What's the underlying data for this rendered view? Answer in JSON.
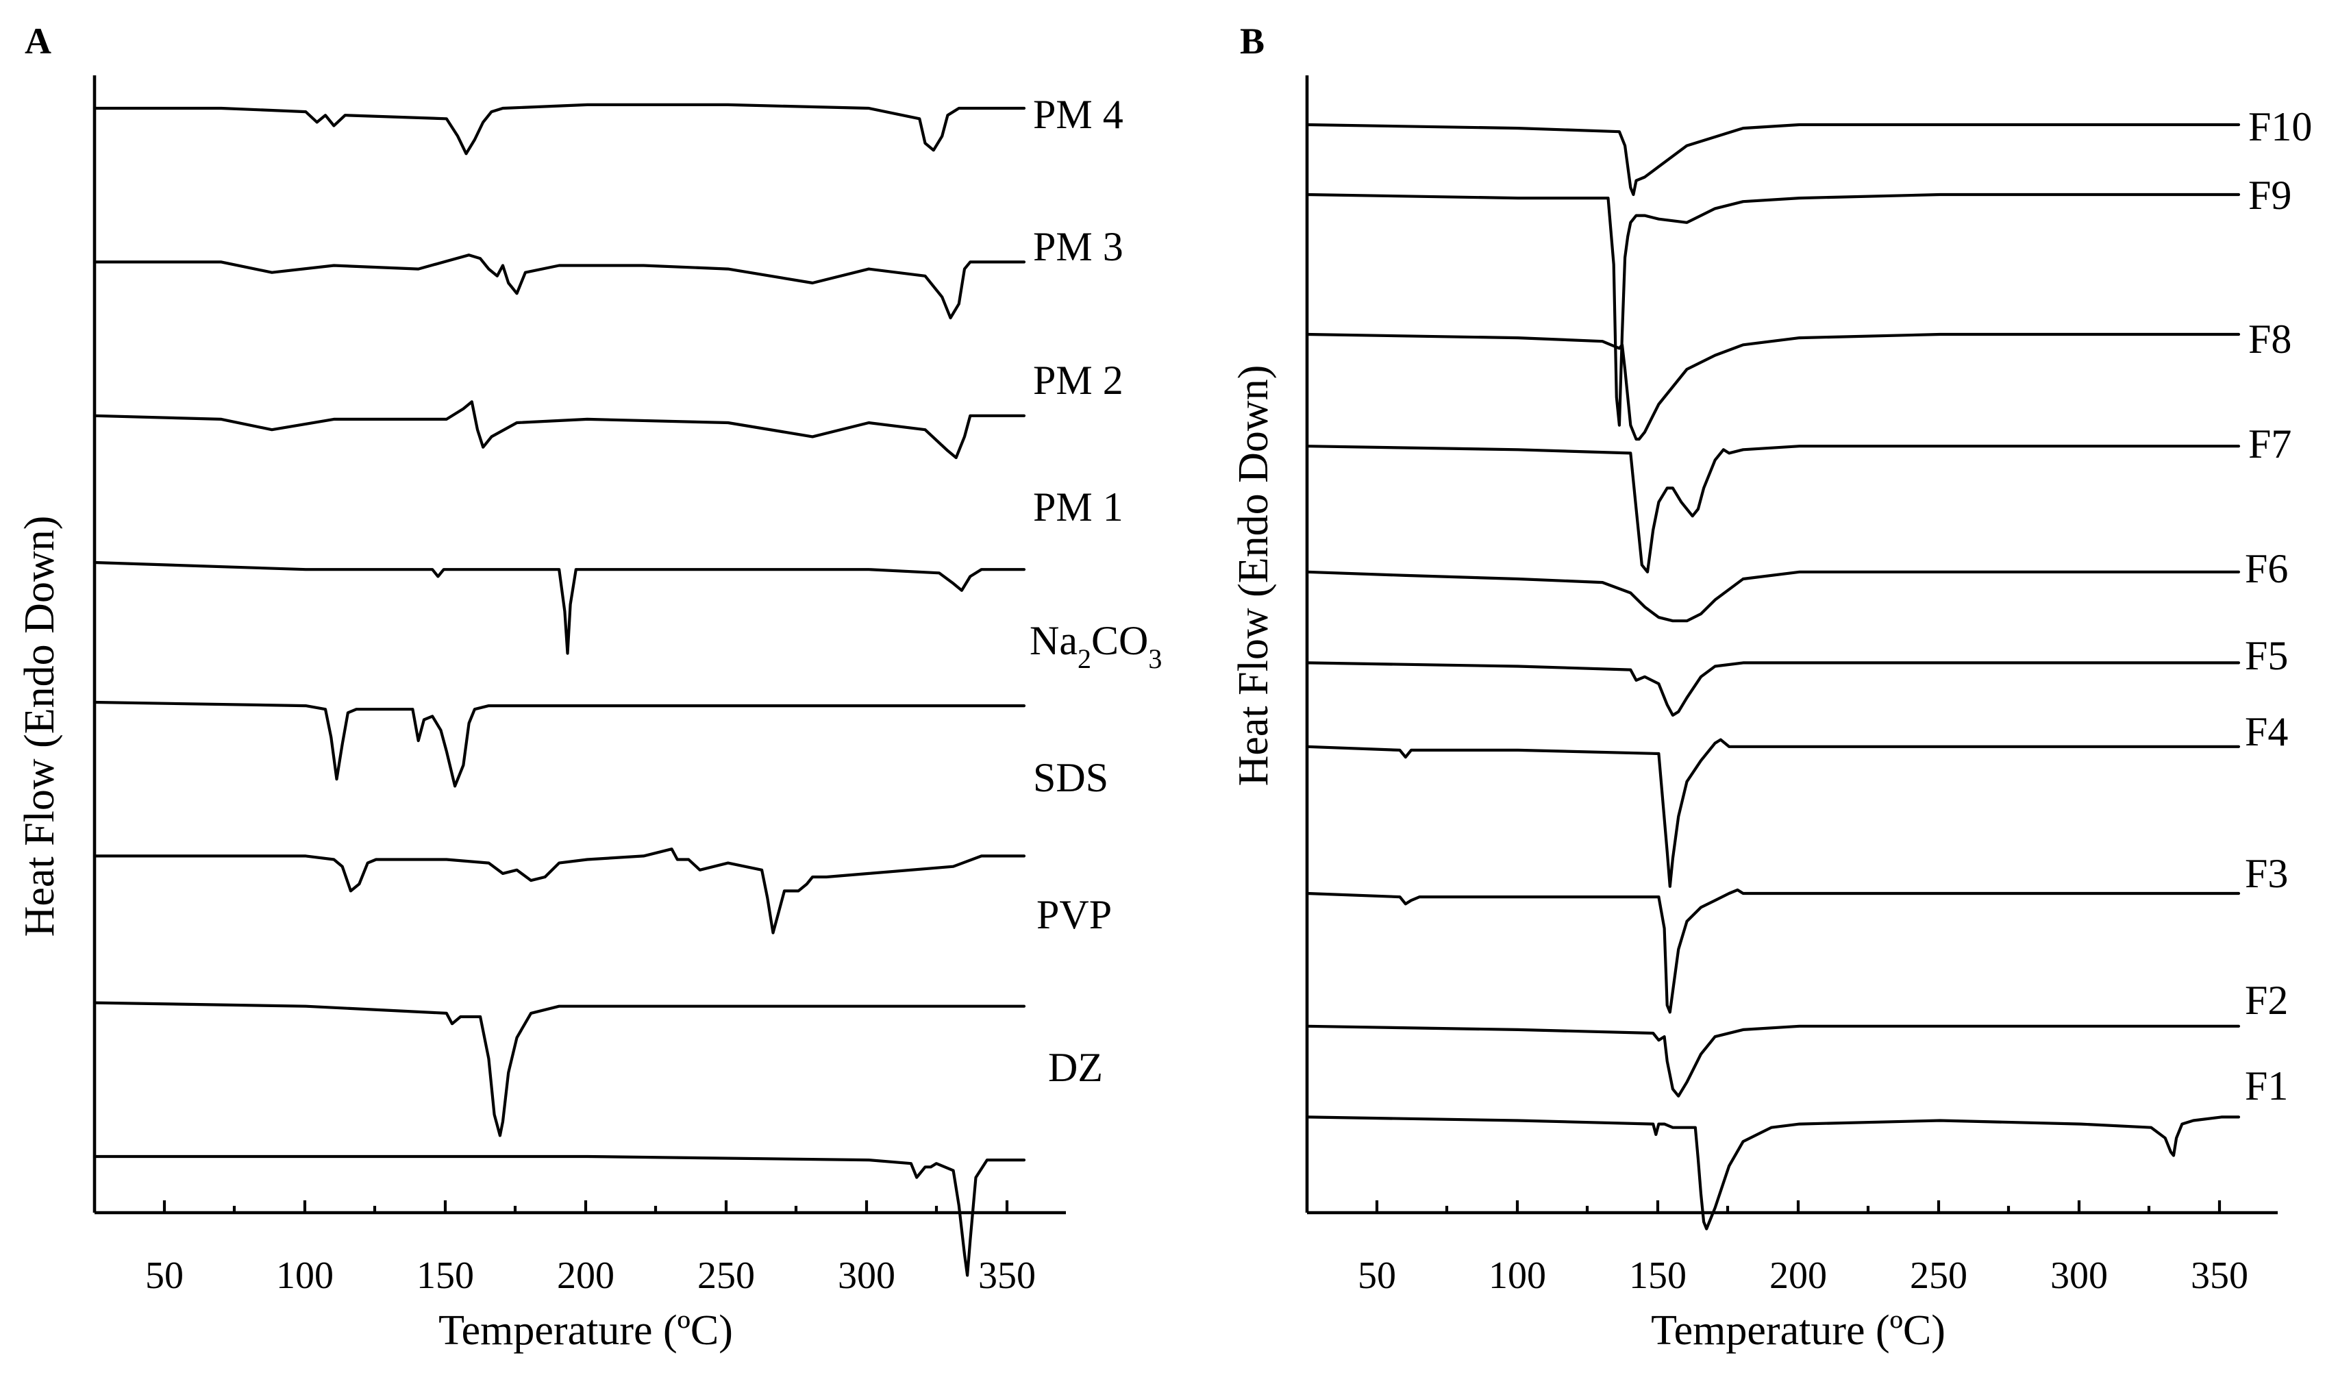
{
  "chart_data": [
    {
      "panel": "A",
      "type": "line",
      "title": "",
      "xlabel": "Temperature (ºC)",
      "ylabel": "Heat Flow (Endo Down)",
      "xlim": [
        25,
        370
      ],
      "xticks": [
        50,
        100,
        150,
        200,
        250,
        300,
        350
      ],
      "xtick_labels": [
        "50",
        "100",
        "150",
        "200",
        "250",
        "300",
        "350"
      ],
      "y_units": "arbitrary (vertically offset traces)",
      "series": [
        {
          "name": "PM 4",
          "base": 0.0,
          "x": [
            25,
            70,
            100,
            104,
            107,
            110,
            114,
            150,
            154,
            157,
            160,
            163,
            166,
            170,
            200,
            250,
            300,
            318,
            320,
            323,
            326,
            328,
            332,
            350
          ],
          "y": [
            0,
            0,
            0.05,
            0.2,
            0.1,
            0.25,
            0.1,
            0.15,
            0.4,
            0.65,
            0.45,
            0.2,
            0.05,
            0,
            -0.05,
            -0.05,
            0,
            0.15,
            0.5,
            0.6,
            0.4,
            0.1,
            0,
            0
          ]
        },
        {
          "name": "PM 3",
          "base": 2.2,
          "x": [
            25,
            70,
            88,
            110,
            140,
            158,
            162,
            165,
            168,
            170,
            172,
            175,
            178,
            190,
            220,
            250,
            280,
            300,
            320,
            326,
            329,
            332,
            334,
            336,
            340,
            350
          ],
          "y": [
            0,
            0,
            0.15,
            0.05,
            0.1,
            -0.1,
            -0.05,
            0.1,
            0.2,
            0.05,
            0.3,
            0.45,
            0.15,
            0.05,
            0.05,
            0.1,
            0.3,
            0.1,
            0.2,
            0.5,
            0.8,
            0.6,
            0.1,
            0,
            0,
            0
          ]
        },
        {
          "name": "PM 2",
          "base": 4.4,
          "x": [
            25,
            70,
            88,
            110,
            150,
            156,
            159,
            161,
            163,
            166,
            175,
            200,
            250,
            280,
            300,
            320,
            328,
            331,
            334,
            336,
            340,
            350
          ],
          "y": [
            0,
            0.05,
            0.2,
            0.05,
            0.05,
            -0.1,
            -0.2,
            0.2,
            0.45,
            0.3,
            0.1,
            0.05,
            0.1,
            0.3,
            0.1,
            0.2,
            0.5,
            0.6,
            0.3,
            0,
            0,
            0
          ]
        },
        {
          "name": "PM 1",
          "base": 6.5,
          "x": [
            25,
            100,
            145,
            147,
            149,
            152,
            190,
            192,
            193,
            194,
            196,
            200,
            250,
            300,
            325,
            330,
            333,
            336,
            340,
            350
          ],
          "y": [
            0,
            0.1,
            0.1,
            0.2,
            0.1,
            0.1,
            0.1,
            0.7,
            1.3,
            0.6,
            0.1,
            0.1,
            0.1,
            0.1,
            0.15,
            0.3,
            0.4,
            0.2,
            0.1,
            0.1
          ]
        },
        {
          "name": "Na₂CO₃",
          "base": 8.5,
          "x": [
            25,
            100,
            107,
            109,
            111,
            113,
            115,
            118,
            130,
            138,
            140,
            142,
            145,
            148,
            150,
            153,
            156,
            158,
            160,
            165,
            200,
            250,
            300,
            350
          ],
          "y": [
            0,
            0.05,
            0.1,
            0.5,
            1.1,
            0.6,
            0.15,
            0.1,
            0.1,
            0.1,
            0.55,
            0.25,
            0.2,
            0.4,
            0.7,
            1.2,
            0.9,
            0.3,
            0.1,
            0.05,
            0.05,
            0.05,
            0.05,
            0.05
          ]
        },
        {
          "name": "SDS",
          "base": 10.7,
          "x": [
            25,
            100,
            110,
            113,
            116,
            119,
            122,
            125,
            150,
            165,
            170,
            175,
            180,
            185,
            190,
            200,
            220,
            230,
            232,
            236,
            240,
            250,
            262,
            264,
            266,
            268,
            270,
            275,
            278,
            280,
            285,
            300,
            330,
            340,
            350
          ],
          "y": [
            0,
            0,
            0.05,
            0.15,
            0.5,
            0.4,
            0.1,
            0.05,
            0.05,
            0.1,
            0.25,
            0.2,
            0.35,
            0.3,
            0.1,
            0.05,
            0,
            -0.1,
            0.05,
            0.05,
            0.2,
            0.1,
            0.2,
            0.6,
            1.1,
            0.8,
            0.5,
            0.5,
            0.4,
            0.3,
            0.3,
            0.25,
            0.15,
            0,
            0
          ]
        },
        {
          "name": "PVP",
          "base": 12.8,
          "x": [
            25,
            100,
            150,
            152,
            155,
            162,
            165,
            167,
            169,
            170,
            172,
            175,
            180,
            190,
            200,
            250,
            300,
            350
          ],
          "y": [
            0,
            0.05,
            0.15,
            0.3,
            0.2,
            0.2,
            0.8,
            1.6,
            1.9,
            1.7,
            1.0,
            0.5,
            0.15,
            0.05,
            0.05,
            0.05,
            0.05,
            0.05
          ]
        },
        {
          "name": "DZ",
          "base": 15.0,
          "x": [
            25,
            100,
            200,
            300,
            315,
            317,
            319,
            320,
            322,
            324,
            330,
            332,
            334,
            335,
            336,
            338,
            342,
            350
          ],
          "y": [
            0,
            0,
            0,
            0.05,
            0.1,
            0.3,
            0.2,
            0.15,
            0.15,
            0.1,
            0.2,
            0.7,
            1.4,
            1.7,
            1.2,
            0.3,
            0.05,
            0.05
          ]
        }
      ],
      "curve_labels": [
        "PM 4",
        "PM 3",
        "PM 2",
        "PM 1",
        "Na",
        "2",
        "CO",
        "3",
        "SDS",
        "PVP",
        "DZ"
      ]
    },
    {
      "panel": "B",
      "type": "line",
      "title": "",
      "xlabel": "Temperature (ºC)",
      "ylabel": "Heat Flow (Endo Down)",
      "xlim": [
        25,
        370
      ],
      "xticks": [
        50,
        100,
        150,
        200,
        250,
        300,
        350
      ],
      "xtick_labels": [
        "50",
        "100",
        "150",
        "200",
        "250",
        "300",
        "350"
      ],
      "y_units": "arbitrary (vertically offset traces)",
      "series": [
        {
          "name": "F10",
          "base": 0.0,
          "x": [
            25,
            100,
            136,
            138,
            140,
            141,
            142,
            145,
            150,
            160,
            180,
            200,
            250,
            300,
            350
          ],
          "y": [
            0,
            0.05,
            0.1,
            0.3,
            0.9,
            1.0,
            0.8,
            0.75,
            0.6,
            0.3,
            0.05,
            0,
            0,
            0,
            0
          ]
        },
        {
          "name": "F9",
          "base": 1.0,
          "x": [
            25,
            100,
            132,
            134,
            135,
            136,
            137,
            138,
            139,
            140,
            142,
            145,
            150,
            160,
            165,
            170,
            180,
            200,
            250,
            300,
            350
          ],
          "y": [
            0,
            0.05,
            0.05,
            1.0,
            2.9,
            3.3,
            2.0,
            0.9,
            0.6,
            0.4,
            0.3,
            0.3,
            0.35,
            0.4,
            0.3,
            0.2,
            0.1,
            0.05,
            0,
            0,
            0
          ]
        },
        {
          "name": "F8",
          "base": 3.0,
          "x": [
            25,
            100,
            130,
            136,
            137,
            138,
            140,
            141,
            142,
            143,
            145,
            150,
            160,
            170,
            180,
            200,
            250,
            300,
            350
          ],
          "y": [
            0,
            0.05,
            0.1,
            0.2,
            0.15,
            0.5,
            1.3,
            1.4,
            1.5,
            1.5,
            1.4,
            1.0,
            0.5,
            0.3,
            0.15,
            0.05,
            0,
            0,
            0
          ]
        },
        {
          "name": "F7",
          "base": 4.6,
          "x": [
            25,
            100,
            140,
            142,
            144,
            146,
            148,
            150,
            153,
            155,
            158,
            162,
            164,
            166,
            170,
            173,
            175,
            180,
            200,
            250,
            300,
            350
          ],
          "y": [
            0,
            0.05,
            0.1,
            0.9,
            1.7,
            1.8,
            1.2,
            0.8,
            0.6,
            0.6,
            0.8,
            1.0,
            0.9,
            0.6,
            0.2,
            0.05,
            0.1,
            0.05,
            0,
            0,
            0,
            0
          ]
        },
        {
          "name": "F6",
          "base": 6.4,
          "x": [
            25,
            60,
            100,
            130,
            140,
            145,
            150,
            155,
            160,
            165,
            170,
            180,
            200,
            250,
            300,
            350
          ],
          "y": [
            0,
            0.05,
            0.1,
            0.15,
            0.3,
            0.5,
            0.65,
            0.7,
            0.7,
            0.6,
            0.4,
            0.1,
            0,
            0,
            0,
            0
          ]
        },
        {
          "name": "F5",
          "base": 7.7,
          "x": [
            25,
            100,
            140,
            142,
            145,
            150,
            153,
            155,
            157,
            160,
            165,
            170,
            180,
            200,
            250,
            300,
            350
          ],
          "y": [
            0,
            0.05,
            0.1,
            0.25,
            0.2,
            0.3,
            0.6,
            0.75,
            0.7,
            0.5,
            0.2,
            0.05,
            0,
            0,
            0,
            0,
            0
          ]
        },
        {
          "name": "F4",
          "base": 8.9,
          "x": [
            25,
            58,
            60,
            62,
            65,
            100,
            150,
            153,
            154,
            155,
            157,
            160,
            165,
            170,
            172,
            175,
            180,
            200,
            250,
            300,
            350
          ],
          "y": [
            0,
            0.05,
            0.15,
            0.05,
            0.05,
            0.05,
            0.1,
            1.5,
            2.0,
            1.6,
            1.0,
            0.5,
            0.2,
            -0.05,
            -0.1,
            0,
            0,
            0,
            0,
            0,
            0
          ]
        },
        {
          "name": "F3",
          "base": 11.0,
          "x": [
            25,
            58,
            60,
            62,
            65,
            100,
            150,
            152,
            153,
            154,
            155,
            157,
            160,
            165,
            170,
            175,
            178,
            180,
            200,
            250,
            300,
            350
          ],
          "y": [
            0,
            0.05,
            0.15,
            0.1,
            0.05,
            0.05,
            0.05,
            0.5,
            1.6,
            1.7,
            1.4,
            0.8,
            0.4,
            0.2,
            0.1,
            0,
            -0.05,
            0,
            0,
            0,
            0,
            0
          ]
        },
        {
          "name": "F2",
          "base": 12.9,
          "x": [
            25,
            100,
            148,
            150,
            152,
            153,
            155,
            157,
            160,
            165,
            170,
            180,
            200,
            250,
            300,
            350
          ],
          "y": [
            0,
            0.05,
            0.1,
            0.2,
            0.15,
            0.5,
            0.9,
            1.0,
            0.8,
            0.4,
            0.15,
            0.05,
            0,
            0,
            0,
            0
          ]
        },
        {
          "name": "F1",
          "base": 14.2,
          "x": [
            25,
            100,
            148,
            149,
            150,
            152,
            155,
            160,
            163,
            164,
            165,
            166,
            167,
            170,
            175,
            180,
            190,
            200,
            250,
            300,
            325,
            330,
            332,
            333,
            334,
            336,
            340,
            350
          ],
          "y": [
            0,
            0.05,
            0.1,
            0.25,
            0.1,
            0.1,
            0.15,
            0.15,
            0.15,
            0.6,
            1.1,
            1.5,
            1.6,
            1.3,
            0.7,
            0.35,
            0.15,
            0.1,
            0.05,
            0.1,
            0.15,
            0.3,
            0.5,
            0.55,
            0.3,
            0.1,
            0.05,
            0
          ]
        }
      ],
      "curve_labels": [
        "F10",
        "F9",
        "F8",
        "F7",
        "F6",
        "F5",
        "F4",
        "F3",
        "F2",
        "F1"
      ]
    }
  ]
}
